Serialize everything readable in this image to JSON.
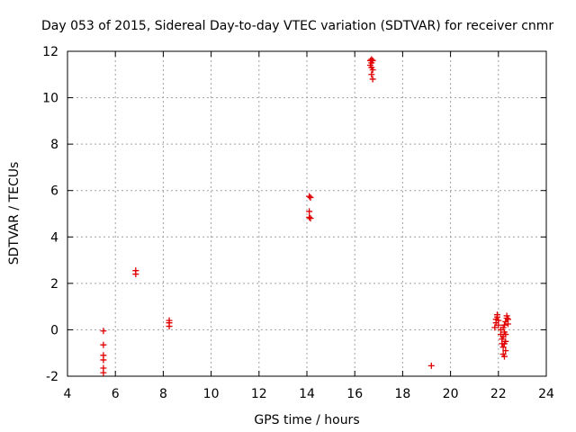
{
  "chart_data": {
    "type": "scatter",
    "title": "Day 053 of 2015, Sidereal Day-to-day VTEC variation (SDTVAR) for receiver cnmr",
    "xlabel": "GPS time / hours",
    "ylabel": "SDTVAR / TECUs",
    "xlim": [
      4,
      24
    ],
    "ylim": [
      -2,
      12
    ],
    "xticks": [
      4,
      6,
      8,
      10,
      12,
      14,
      16,
      18,
      20,
      22,
      24
    ],
    "yticks": [
      -2,
      0,
      2,
      4,
      6,
      8,
      10,
      12
    ],
    "grid": true,
    "marker": "+",
    "color": "#e00000",
    "series": [
      {
        "name": "SDTVAR",
        "points": [
          [
            5.5,
            -0.05
          ],
          [
            5.5,
            -0.65
          ],
          [
            5.5,
            -1.1
          ],
          [
            5.5,
            -1.3
          ],
          [
            5.5,
            -1.65
          ],
          [
            5.5,
            -1.85
          ],
          [
            6.85,
            2.55
          ],
          [
            6.85,
            2.4
          ],
          [
            8.25,
            0.4
          ],
          [
            8.25,
            0.3
          ],
          [
            8.25,
            0.15
          ],
          [
            14.1,
            5.75
          ],
          [
            14.15,
            5.7
          ],
          [
            14.1,
            5.1
          ],
          [
            14.1,
            4.85
          ],
          [
            14.15,
            4.8
          ],
          [
            16.65,
            11.6
          ],
          [
            16.7,
            11.65
          ],
          [
            16.75,
            11.6
          ],
          [
            16.7,
            11.5
          ],
          [
            16.65,
            11.4
          ],
          [
            16.7,
            11.3
          ],
          [
            16.75,
            11.2
          ],
          [
            16.7,
            11.0
          ],
          [
            16.75,
            10.8
          ],
          [
            19.2,
            -1.55
          ],
          [
            21.85,
            0.1
          ],
          [
            21.9,
            0.3
          ],
          [
            21.9,
            0.45
          ],
          [
            21.95,
            0.55
          ],
          [
            21.95,
            0.65
          ],
          [
            22.0,
            0.4
          ],
          [
            22.0,
            0.2
          ],
          [
            22.1,
            0.0
          ],
          [
            22.1,
            -0.2
          ],
          [
            22.15,
            -0.4
          ],
          [
            22.15,
            -0.6
          ],
          [
            22.2,
            -0.75
          ],
          [
            22.2,
            -0.3
          ],
          [
            22.25,
            -0.1
          ],
          [
            22.25,
            0.2
          ],
          [
            22.2,
            -1.05
          ],
          [
            22.25,
            -1.15
          ],
          [
            22.3,
            -0.9
          ],
          [
            22.3,
            -0.5
          ],
          [
            22.3,
            0.35
          ],
          [
            22.35,
            0.5
          ],
          [
            22.35,
            0.6
          ],
          [
            22.4,
            0.45
          ],
          [
            22.4,
            0.25
          ],
          [
            22.3,
            -0.2
          ],
          [
            22.25,
            -0.6
          ],
          [
            22.2,
            0.1
          ]
        ]
      }
    ]
  }
}
